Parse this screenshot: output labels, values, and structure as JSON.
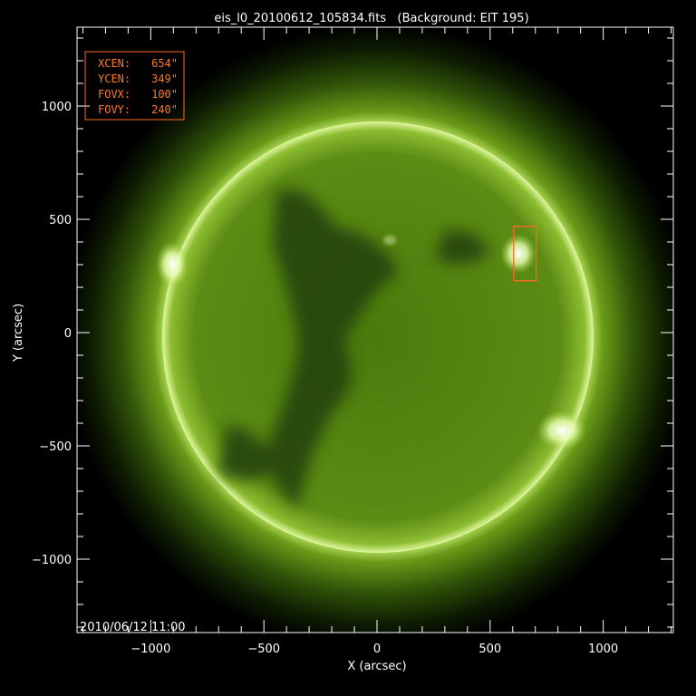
{
  "chart_data": {
    "type": "image",
    "title": "eis_l0_20100612_105834.fits   (Background: EIT 195)",
    "xlabel": "X (arcsec)",
    "ylabel": "Y (arcsec)",
    "xlim": [
      -1326,
      1310
    ],
    "ylim": [
      -1324,
      1348
    ],
    "xticks": [
      -1000,
      -500,
      0,
      500,
      1000
    ],
    "yticks": [
      -1000,
      -500,
      0,
      500,
      1000
    ],
    "xtick_labels": [
      "−1000",
      "−500",
      "0",
      "500",
      "1000"
    ],
    "ytick_labels": [
      "−1000",
      "−500",
      "0",
      "500",
      "1000"
    ],
    "minor_tick_step": 100,
    "grid": false,
    "timestamp": "2010/06/12 11:00",
    "solar_radius_arcsec": 950,
    "colors": {
      "disk": "#5a8a10",
      "limb": "#d8f080",
      "box": "#ff6a20",
      "text": "#ffffff"
    },
    "fov_box": {
      "xcen": 654,
      "ycen": 349,
      "fovx": 100,
      "fovy": 240
    },
    "info_lines": [
      {
        "label": "XCEN:",
        "value": "654\""
      },
      {
        "label": "YCEN:",
        "value": "349\""
      },
      {
        "label": "FOVX:",
        "value": "100\""
      },
      {
        "label": "FOVY:",
        "value": "240\""
      }
    ]
  }
}
